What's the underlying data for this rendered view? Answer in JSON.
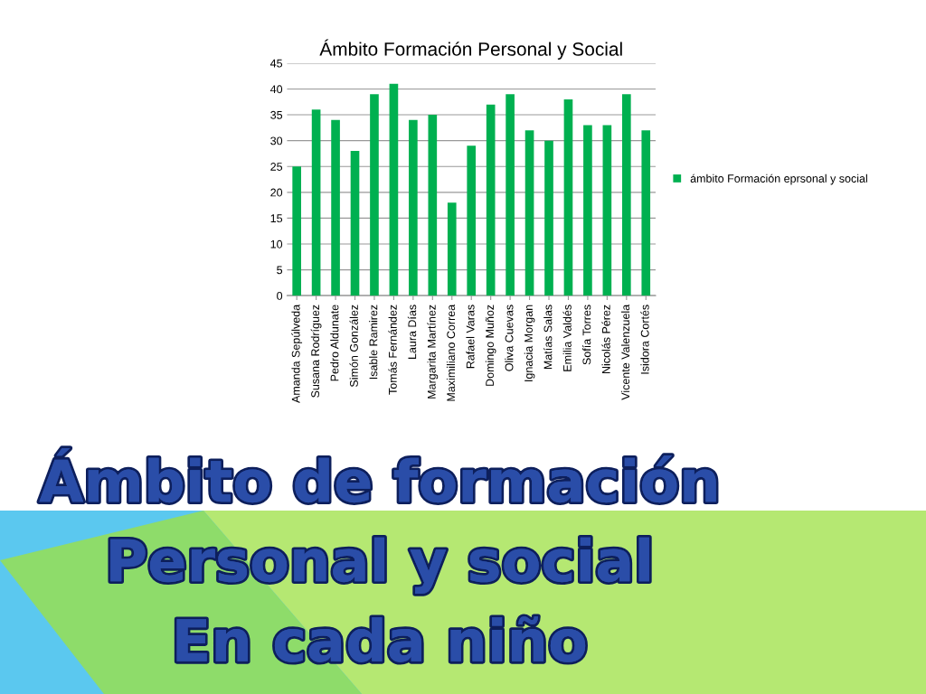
{
  "chart_data": {
    "type": "bar",
    "title": "Ámbito Formación Personal y Social",
    "categories": [
      "Amanda Sepúlveda",
      "Susana Rodríguez",
      "Pedro Aldunate",
      "Simón González",
      "Isable Ramirez",
      "Tomás Fernández",
      "Laura Días",
      "Margarita Martínez",
      "Maximiliano Correa",
      "Rafael Varas",
      "Domingo Muñoz",
      "Oliva Cuevas",
      "Ignacia Morgan",
      "Matías Salas",
      "Emilia Valdés",
      "Sofía Torres",
      "Nicolás Pérez",
      "Vicente Valenzuela",
      "Isidora Cortés"
    ],
    "series": [
      {
        "name": "ámbito Formación eprsonal y social",
        "color": "#00b050",
        "values": [
          25,
          36,
          34,
          28,
          39,
          41,
          34,
          35,
          18,
          29,
          37,
          39,
          32,
          30,
          38,
          33,
          33,
          39,
          32
        ]
      }
    ],
    "ylim": [
      0,
      45
    ],
    "yticks": [
      0,
      5,
      10,
      15,
      20,
      25,
      30,
      35,
      40,
      45
    ],
    "grid": "y",
    "legend": "right",
    "annotations": [
      "Ámbito de formación",
      "Personal y social",
      "En cada niño"
    ]
  }
}
